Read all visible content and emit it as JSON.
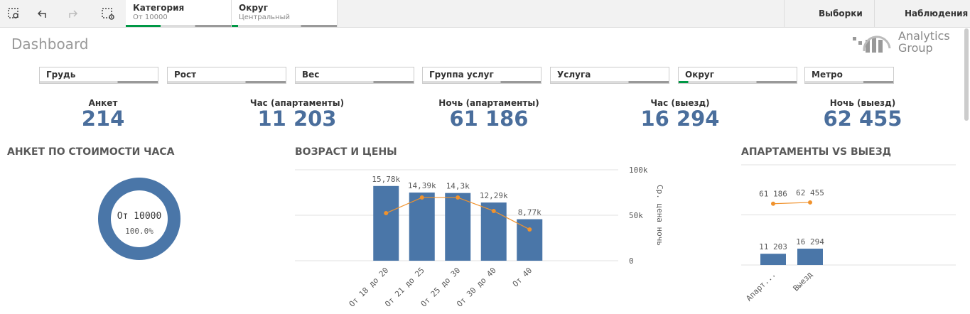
{
  "toolbar": {
    "selections": [
      {
        "field": "Категория",
        "value": "От 10000"
      },
      {
        "field": "Округ",
        "value": "Центральный"
      }
    ],
    "buttons": [
      "Выборки",
      "Наблюдения"
    ]
  },
  "header": {
    "title": "Dashboard",
    "logo": [
      "Analytics",
      "Group"
    ]
  },
  "filters": [
    "Грудь",
    "Рост",
    "Вес",
    "Группа услуг",
    "Услуга",
    "Округ",
    "Метро"
  ],
  "kpis": [
    {
      "label": "Анкет",
      "value": "214"
    },
    {
      "label": "Час (апартаменты)",
      "value": "11 203"
    },
    {
      "label": "Ночь (апартаменты)",
      "value": "61 186"
    },
    {
      "label": "Час (выезд)",
      "value": "16 294"
    },
    {
      "label": "Ночь (выезд)",
      "value": "62 455"
    }
  ],
  "chart_data": [
    {
      "type": "pie",
      "title": "АНКЕТ ПО СТОИМОСТИ ЧАСА",
      "categories": [
        "От 10000"
      ],
      "values": [
        100
      ],
      "value_labels": [
        "100.0%"
      ],
      "color": "#4a76a8"
    },
    {
      "type": "combo",
      "title": "ВОЗРАСТ И ЦЕНЫ",
      "categories": [
        "От 18 до 20",
        "От 21 до 25",
        "От 25 до 30",
        "От 30 до 40",
        "От 40"
      ],
      "series": [
        {
          "color": "#4a76a8",
          "values": [
            15780,
            14390,
            14300,
            12290,
            8770
          ],
          "value_labels": [
            "15,78k",
            "14,39k",
            "14,3k",
            "12,29k",
            "8,77k"
          ]
        },
        {
          "color": "#f0922d",
          "axis": "y2",
          "values": [
            52300,
            69500,
            69500,
            54700,
            34400
          ]
        }
      ],
      "ylim": [
        0,
        19200
      ],
      "y2lim": [
        0,
        100000
      ],
      "y2ticks": [
        {
          "value": 0,
          "label": "0"
        },
        {
          "value": 50000,
          "label": "50k"
        },
        {
          "value": 100000,
          "label": "100k"
        }
      ],
      "y2label": "Ср. цена ночь",
      "grid": true
    },
    {
      "type": "combo",
      "title": "АПАРТАМЕНТЫ VS ВЫЕЗД",
      "categories": [
        "Апарт...",
        "Выезд"
      ],
      "series": [
        {
          "color": "#4a76a8",
          "values": [
            11203,
            16294
          ],
          "value_labels": [
            "11 203",
            "16 294"
          ]
        },
        {
          "color": "#f0922d",
          "values": [
            61186,
            62455
          ],
          "value_labels": [
            "61 186",
            "62 455"
          ]
        }
      ],
      "ylim": [
        0,
        100000
      ],
      "grid": true
    }
  ]
}
